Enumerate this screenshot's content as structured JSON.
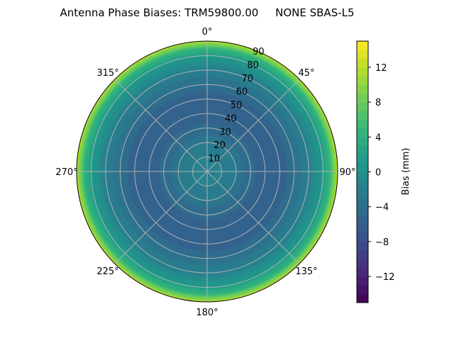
{
  "chart_data": {
    "type": "heatmap",
    "projection": "polar",
    "title": "Antenna Phase Biases: TRM59800.00     NONE SBAS-L5",
    "colorbar_label": "Bias (mm)",
    "colormap": "viridis",
    "clim": [
      -15,
      15
    ],
    "colorbar_ticks": [
      -12,
      -8,
      -4,
      0,
      4,
      8,
      12
    ],
    "colorbar_tick_labels": [
      "−12",
      "−8",
      "−4",
      "0",
      "4",
      "8",
      "12"
    ],
    "angle_tick_labels": [
      "0°",
      "45°",
      "90°",
      "135°",
      "180°",
      "225°",
      "270°",
      "315°"
    ],
    "radial_ticks": [
      10,
      20,
      30,
      40,
      50,
      60,
      70,
      80,
      90
    ],
    "radial_tick_labels": [
      "10",
      "20",
      "30",
      "40",
      "50",
      "60",
      "70",
      "80",
      "90"
    ],
    "rlim": [
      0,
      90
    ],
    "grid": true,
    "zenith_deg": [
      0,
      5,
      10,
      15,
      20,
      25,
      30,
      35,
      40,
      45,
      50,
      55,
      60,
      65,
      70,
      75,
      80,
      85,
      90
    ],
    "bias_mm": [
      -1,
      -1.5,
      -2,
      -2.5,
      -3,
      -4,
      -4.5,
      -5.5,
      -6,
      -6,
      -5.5,
      -5,
      -4,
      -3,
      -2,
      -0.5,
      1.5,
      5,
      12
    ]
  }
}
